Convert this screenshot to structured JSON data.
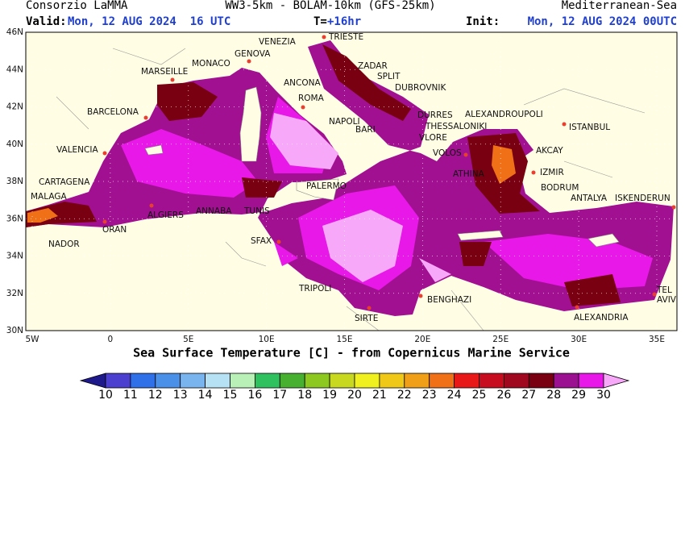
{
  "header": {
    "left": "Consorzio LaMMA",
    "center": "WW3-5km - BOLAM-10km (GFS-25km)",
    "right": "Mediterranean-Sea",
    "valid_label": "Valid:",
    "valid_value": "Mon, 12 AUG 2024  16 UTC",
    "t_label": "T=",
    "t_value": "+16hr",
    "init_label": "Init:",
    "init_value": "Mon, 12 AUG 2024 00UTC"
  },
  "map": {
    "lat_labels": [
      "30N",
      "32N",
      "34N",
      "36N",
      "38N",
      "40N",
      "42N",
      "44N",
      "46N"
    ],
    "lon_labels": [
      "5W",
      "0",
      "5E",
      "10E",
      "15E",
      "20E",
      "25E",
      "30E",
      "35E"
    ],
    "cities": [
      "VENEZIA",
      "TRIESTE",
      "MONACO",
      "GENOVA",
      "MARSEILLE",
      "ZADAR",
      "SPLIT",
      "ANCONA",
      "DUBROVNIK",
      "ROMA",
      "BARCELONA",
      "DURRES",
      "ALEXANDROUPOLI",
      "NAPOLI",
      "THESSALONIKI",
      "BARI",
      "ISTANBUL",
      "VLORE",
      "VALENCIA",
      "AKCAY",
      "VOLOS",
      "ATHINA",
      "IZMIR",
      "CARTAGENA",
      "PALERMO",
      "BODRUM",
      "ANTALYA",
      "ISKENDERUN",
      "MALAGA",
      "ALGIERS",
      "ANNABA",
      "TUNIS",
      "ORAN",
      "NADOR",
      "SFAX",
      "TRIPOLI",
      "TEL",
      "AVIV",
      "BENGHAZI",
      "SIRTE",
      "ALEXANDRIA"
    ],
    "caption": "Sea Surface Temperature [C] - from Copernicus Marine Service"
  },
  "colorbar": {
    "ticks": [
      10,
      11,
      12,
      13,
      14,
      15,
      16,
      17,
      18,
      19,
      20,
      21,
      22,
      23,
      24,
      25,
      26,
      27,
      28,
      29,
      30
    ],
    "colors": [
      "#1e1a8c",
      "#4b3fd0",
      "#2f6fe8",
      "#4a90e8",
      "#7ab4ee",
      "#b6e0f4",
      "#b8f0b8",
      "#2fc060",
      "#48b030",
      "#8cc820",
      "#c8d820",
      "#f0f020",
      "#f0c818",
      "#f0a018",
      "#f07018",
      "#e81818",
      "#c80c20",
      "#a00820",
      "#780010",
      "#9a1090",
      "#e818e8",
      "#f8a8f8"
    ]
  }
}
